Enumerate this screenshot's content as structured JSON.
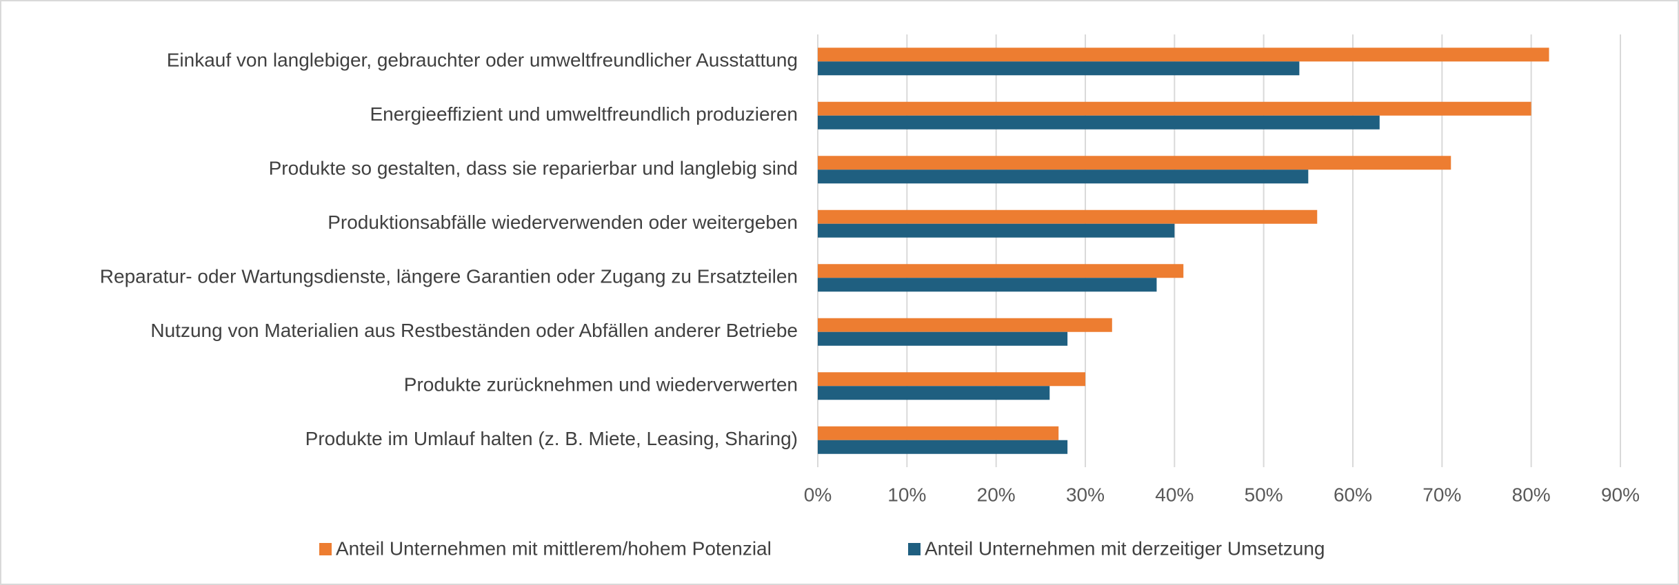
{
  "chart_data": {
    "type": "hbar",
    "categories": [
      "Einkauf von langlebiger, gebrauchter oder umweltfreundlicher Ausstattung",
      "Energieeffizient und umweltfreundlich produzieren",
      "Produkte so gestalten, dass sie reparierbar und langlebig sind",
      "Produktionsabfälle wiederverwenden oder weitergeben",
      "Reparatur- oder Wartungsdienste, längere Garantien oder Zugang zu Ersatzteilen",
      "Nutzung von Materialien aus Restbeständen oder Abfällen anderer Betriebe",
      "Produkte zurücknehmen und wiederverwerten",
      "Produkte im Umlauf halten (z. B. Miete, Leasing, Sharing)"
    ],
    "series": [
      {
        "name": "Anteil Unternehmen mit mittlerem/hohem Potenzial",
        "color": "#ed7d31",
        "values": [
          82,
          80,
          71,
          56,
          41,
          33,
          30,
          27
        ]
      },
      {
        "name": "Anteil Unternehmen mit derzeitiger Umsetzung",
        "color": "#1f5f80",
        "values": [
          54,
          63,
          55,
          40,
          38,
          28,
          26,
          28
        ]
      }
    ],
    "xlim": [
      0,
      90
    ],
    "xticks": [
      {
        "value": 0,
        "label": "0%"
      },
      {
        "value": 10,
        "label": "10%"
      },
      {
        "value": 20,
        "label": "20%"
      },
      {
        "value": 30,
        "label": "30%"
      },
      {
        "value": 40,
        "label": "40%"
      },
      {
        "value": 50,
        "label": "50%"
      },
      {
        "value": 60,
        "label": "60%"
      },
      {
        "value": 70,
        "label": "70%"
      },
      {
        "value": 80,
        "label": "80%"
      },
      {
        "value": 90,
        "label": "90%"
      }
    ],
    "grid": true,
    "legend": "bottom"
  }
}
